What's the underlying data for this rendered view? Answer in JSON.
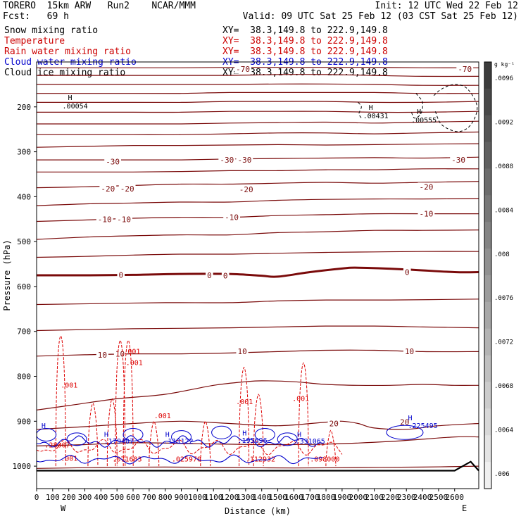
{
  "header": {
    "line1_left": "TORERO  15km ARW   Run2    NCAR/MMM",
    "line1_right": "Init: 12 UTC Wed 22 Feb 12",
    "line2_left": "Fcst:   69 h",
    "line2_right": "Valid: 09 UTC Sat 25 Feb 12 (03 CST Sat 25 Feb 12)"
  },
  "fields": [
    {
      "label": "Snow mixing ratio",
      "xy": "XY=  38.3,149.8 to 222.9,149.8",
      "color": "#000000"
    },
    {
      "label": "Temperature",
      "xy": "XY=  38.3,149.8 to 222.9,149.8",
      "color": "#cc0000"
    },
    {
      "label": "Rain water mixing ratio",
      "xy": "XY=  38.3,149.8 to 222.9,149.8",
      "color": "#cc0000"
    },
    {
      "label": "Cloud water mixing ratio",
      "xy": "XY=  38.3,149.8 to 222.9,149.8",
      "color": "#0000cc"
    },
    {
      "label": "Cloud ice mixing ratio",
      "xy": "XY=  38.3,149.8 to 222.9,149.8",
      "color": "#000000"
    }
  ],
  "chart_data": {
    "type": "contour_cross_section",
    "xlabel": "Distance (km)",
    "ylabel": "Pressure (hPa)",
    "x_ticks": [
      0,
      100,
      200,
      300,
      400,
      500,
      600,
      700,
      800,
      900,
      1000,
      1100,
      1200,
      1300,
      1400,
      1500,
      1600,
      1700,
      1800,
      1900,
      2000,
      2100,
      2200,
      2300,
      2400,
      2500,
      2600
    ],
    "x_tick_labels": [
      "0",
      "100",
      "200",
      "300",
      "400",
      "500",
      "600",
      "700",
      "800",
      "900",
      "1000",
      "1100",
      "1200",
      "1300",
      "1400",
      "1500",
      "1600",
      "1700",
      "1800",
      "1900",
      "2000",
      "2100",
      "2200",
      "2300",
      "2400",
      "2500",
      "2600"
    ],
    "xlim": [
      0,
      2750
    ],
    "y_ticks": [
      200,
      300,
      400,
      500,
      600,
      700,
      800,
      900,
      1000
    ],
    "y_tick_labels": [
      "200",
      "300",
      "400",
      "500",
      "600",
      "700",
      "800",
      "900",
      "1000"
    ],
    "ylim": [
      1050,
      100
    ],
    "endpoints": {
      "left": "W",
      "right": "E"
    },
    "colorbar": {
      "unit": "g kg⁻¹",
      "tick_labels": [
        ".006",
        ".0064",
        ".0068",
        ".0072",
        ".0076",
        ".008",
        ".0084",
        ".0088",
        ".0092",
        ".0096"
      ],
      "levels": 16
    },
    "temperature": {
      "color": "#7a0a0a",
      "zero_color": "#7a0a0a",
      "isotherms": [
        {
          "x": [
            0,
            400,
            800,
            1200,
            1600,
            2000,
            2400,
            2750
          ],
          "p": [
            1005,
            1003,
            1002,
            1003,
            1004,
            1003,
            1002,
            1000
          ]
        },
        {
          "x": [
            0,
            300,
            600,
            1000,
            1400,
            1800,
            2200,
            2600,
            2750
          ],
          "p": [
            955,
            952,
            948,
            950,
            952,
            951,
            945,
            935,
            935
          ]
        },
        {
          "x": [
            0,
            300,
            600,
            900,
            1200,
            1500,
            1800,
            1900,
            2000,
            2100,
            2300,
            2500,
            2750
          ],
          "p": [
            918,
            912,
            905,
            900,
            905,
            910,
            902,
            900,
            905,
            915,
            918,
            910,
            905
          ]
        },
        {
          "x": [
            0,
            200,
            500,
            800,
            1100,
            1300,
            1400,
            1600,
            1800,
            2000,
            2200,
            2400,
            2600,
            2750
          ],
          "p": [
            875,
            865,
            850,
            840,
            820,
            812,
            810,
            812,
            818,
            820,
            820,
            818,
            820,
            820
          ]
        },
        {
          "x": [
            0,
            300,
            600,
            900,
            1200,
            1500,
            1800,
            2100,
            2400,
            2750
          ],
          "p": [
            755,
            752,
            750,
            750,
            748,
            745,
            742,
            742,
            745,
            745
          ]
        },
        {
          "x": [
            0,
            300,
            600,
            900,
            1200,
            1500,
            1800,
            2100,
            2400,
            2750
          ],
          "p": [
            698,
            696,
            694,
            693,
            692,
            690,
            688,
            688,
            690,
            692
          ]
        },
        {
          "x": [
            0,
            400,
            800,
            1200,
            1500,
            1800,
            2200,
            2750
          ],
          "p": [
            640,
            638,
            636,
            636,
            632,
            630,
            630,
            628
          ]
        },
        {
          "x": [
            0,
            300,
            600,
            900,
            1200,
            1400,
            1500,
            1700,
            1900,
            2000,
            2300,
            2600,
            2750
          ],
          "p": [
            575,
            575,
            574,
            572,
            572,
            576,
            578,
            568,
            560,
            558,
            562,
            568,
            568
          ]
        },
        {
          "x": [
            0,
            300,
            600,
            900,
            1200,
            1500,
            1800,
            2100,
            2400,
            2750
          ],
          "p": [
            535,
            533,
            530,
            528,
            528,
            526,
            524,
            523,
            522,
            522
          ]
        },
        {
          "x": [
            0,
            300,
            600,
            900,
            1200,
            1500,
            1800,
            2100,
            2400,
            2750
          ],
          "p": [
            495,
            490,
            487,
            485,
            485,
            480,
            478,
            475,
            475,
            474
          ]
        },
        {
          "x": [
            0,
            300,
            600,
            900,
            1200,
            1500,
            1800,
            2100,
            2400,
            2750
          ],
          "p": [
            455,
            452,
            448,
            446,
            446,
            442,
            440,
            438,
            438,
            438
          ]
        },
        {
          "x": [
            0,
            300,
            600,
            900,
            1200,
            1500,
            1800,
            2100,
            2400,
            2750
          ],
          "p": [
            420,
            416,
            414,
            412,
            412,
            408,
            406,
            405,
            405,
            404
          ]
        },
        {
          "x": [
            0,
            300,
            600,
            900,
            1200,
            1500,
            1800,
            2100,
            2400,
            2750
          ],
          "p": [
            380,
            378,
            375,
            372,
            372,
            370,
            368,
            370,
            368,
            366
          ]
        },
        {
          "x": [
            0,
            300,
            600,
            900,
            1200,
            1500,
            1800,
            2100,
            2400,
            2750
          ],
          "p": [
            345,
            345,
            345,
            344,
            342,
            342,
            340,
            340,
            338,
            338
          ]
        },
        {
          "x": [
            0,
            300,
            600,
            900,
            1200,
            1500,
            1800,
            2100,
            2400,
            2750
          ],
          "p": [
            318,
            318,
            318,
            318,
            316,
            315,
            314,
            313,
            314,
            312
          ]
        },
        {
          "x": [
            0,
            300,
            600,
            900,
            1200,
            1500,
            1800,
            2100,
            2400,
            2750
          ],
          "p": [
            290,
            288,
            286,
            286,
            285,
            284,
            285,
            284,
            283,
            282
          ]
        },
        {
          "x": [
            0,
            300,
            600,
            900,
            1200,
            1500,
            1800,
            2100,
            2400,
            2750
          ],
          "p": [
            262,
            262,
            262,
            262,
            260,
            258,
            258,
            260,
            258,
            256
          ]
        },
        {
          "x": [
            0,
            300,
            600,
            900,
            1200,
            1500,
            1800,
            2100,
            2400,
            2750
          ],
          "p": [
            238,
            238,
            238,
            238,
            236,
            235,
            234,
            236,
            234,
            232
          ]
        },
        {
          "x": [
            0,
            300,
            600,
            900,
            1200,
            1500,
            1800,
            2100,
            2400,
            2750
          ],
          "p": [
            212,
            212,
            212,
            212,
            210,
            210,
            210,
            212,
            212,
            210
          ]
        },
        {
          "x": [
            0,
            300,
            600,
            900,
            1200,
            1500,
            1800,
            2100,
            2400,
            2750
          ],
          "p": [
            190,
            190,
            190,
            190,
            188,
            188,
            188,
            190,
            190,
            188
          ]
        },
        {
          "x": [
            0,
            300,
            600,
            900,
            1200,
            1500,
            1800,
            2100,
            2400,
            2750
          ],
          "p": [
            170,
            170,
            170,
            170,
            168,
            168,
            168,
            168,
            170,
            170
          ]
        },
        {
          "x": [
            0,
            300,
            600,
            900,
            1200,
            1500,
            1800,
            2100,
            2400,
            2750
          ],
          "p": [
            150,
            150,
            150,
            150,
            150,
            149,
            149,
            150,
            152,
            152
          ]
        },
        {
          "x": [
            0,
            300,
            600,
            900,
            1200,
            1500,
            1800,
            2100,
            2400,
            2750
          ],
          "p": [
            130,
            130,
            130,
            130,
            130,
            128,
            128,
            130,
            132,
            132
          ]
        },
        {
          "x": [
            0,
            300,
            600,
            900,
            1200,
            1500,
            1800,
            2100,
            2400,
            2750
          ],
          "p": [
            113,
            113,
            113,
            113,
            112,
            112,
            112,
            112,
            113,
            113
          ]
        }
      ],
      "zero_index": 7,
      "labels": [
        {
          "text": "-70",
          "x": 1240,
          "p": 116
        },
        {
          "text": "-70",
          "x": 2620,
          "p": 116
        },
        {
          "text": "-30",
          "x": 430,
          "p": 322
        },
        {
          "text": "-30",
          "x": 1140,
          "p": 318
        },
        {
          "text": "-30",
          "x": 1250,
          "p": 318
        },
        {
          "text": "-30",
          "x": 2580,
          "p": 318
        },
        {
          "text": "-20",
          "x": 400,
          "p": 382
        },
        {
          "text": "-20",
          "x": 520,
          "p": 382
        },
        {
          "text": "-20",
          "x": 1260,
          "p": 384
        },
        {
          "text": "-20",
          "x": 2380,
          "p": 378
        },
        {
          "text": "-10",
          "x": 380,
          "p": 450
        },
        {
          "text": "-10",
          "x": 500,
          "p": 450
        },
        {
          "text": "-10",
          "x": 1170,
          "p": 446
        },
        {
          "text": "-10",
          "x": 2380,
          "p": 438
        },
        {
          "text": "0",
          "x": 510,
          "p": 574
        },
        {
          "text": "0",
          "x": 1060,
          "p": 575
        },
        {
          "text": "0",
          "x": 1160,
          "p": 576
        },
        {
          "text": "0",
          "x": 2290,
          "p": 568
        },
        {
          "text": "10",
          "x": 380,
          "p": 752
        },
        {
          "text": "10",
          "x": 490,
          "p": 750
        },
        {
          "text": "10",
          "x": 1250,
          "p": 744
        },
        {
          "text": "10",
          "x": 2290,
          "p": 744
        },
        {
          "text": "20",
          "x": 1820,
          "p": 905
        },
        {
          "text": "20",
          "x": 2260,
          "p": 902
        }
      ]
    },
    "rain": {
      "color": "#dd0000",
      "labels": [
        {
          "text": ".001",
          "x": 150,
          "p": 825
        },
        {
          "text": ".001",
          "x": 540,
          "p": 750
        },
        {
          "text": ".001",
          "x": 555,
          "p": 775
        },
        {
          "text": ".001",
          "x": 730,
          "p": 893
        },
        {
          "text": ".001",
          "x": 1240,
          "p": 862
        },
        {
          "text": ".001",
          "x": 1590,
          "p": 855
        },
        {
          "text": ".001",
          "x": 150,
          "p": 988
        },
        {
          "text": ".071683",
          "x": 470,
          "p": 990
        },
        {
          "text": ".025970",
          "x": 840,
          "p": 990
        },
        {
          "text": ".112932",
          "x": 1300,
          "p": 990
        },
        {
          "text": ".098000",
          "x": 1700,
          "p": 990
        },
        {
          "text": ".28007",
          "x": 50,
          "p": 958
        }
      ],
      "peaks": [
        {
          "x": 150,
          "p": 710
        },
        {
          "x": 350,
          "p": 860
        },
        {
          "x": 470,
          "p": 850
        },
        {
          "x": 520,
          "p": 720
        },
        {
          "x": 570,
          "p": 720
        },
        {
          "x": 730,
          "p": 900
        },
        {
          "x": 1050,
          "p": 900
        },
        {
          "x": 1290,
          "p": 780
        },
        {
          "x": 1380,
          "p": 840
        },
        {
          "x": 1660,
          "p": 770
        },
        {
          "x": 1830,
          "p": 920
        }
      ]
    },
    "cloud_water": {
      "color": "#0000cc",
      "labels": [
        {
          "text": ".179407",
          "x": 420,
          "p": 950
        },
        {
          "text": ".113122",
          "x": 790,
          "p": 950
        },
        {
          "text": ".195696",
          "x": 1250,
          "p": 948
        },
        {
          "text": ".331065",
          "x": 1610,
          "p": 950
        },
        {
          "text": ".225495",
          "x": 2310,
          "p": 915
        }
      ],
      "highs": [
        {
          "x": 30,
          "p": 915
        },
        {
          "x": 420,
          "p": 935
        },
        {
          "x": 800,
          "p": 935
        },
        {
          "x": 1280,
          "p": 932
        },
        {
          "x": 1620,
          "p": 935
        },
        {
          "x": 2310,
          "p": 898
        }
      ]
    },
    "snow": {
      "color": "#000000",
      "maxima": [
        {
          "text": ".00054",
          "x": 160,
          "p": 200
        },
        {
          "text": ".00431",
          "x": 2030,
          "p": 222
        },
        {
          "text": ".00555",
          "x": 2330,
          "p": 232
        }
      ]
    },
    "high_marker": "H",
    "terrain": {
      "x": [
        0,
        2600,
        2700,
        2750
      ],
      "p": [
        1010,
        1010,
        990,
        1010
      ]
    }
  }
}
